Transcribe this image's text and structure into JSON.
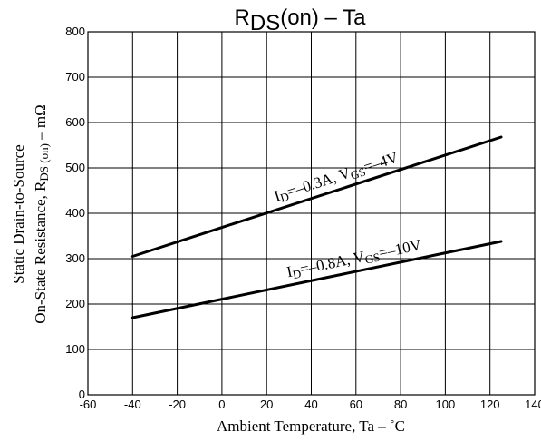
{
  "chart_data": {
    "type": "line",
    "title": {
      "main": "R",
      "sub": "DS",
      "rest": "(on)  –  Ta"
    },
    "xlabel": "Ambient Temperature, Ta  –  ˚C",
    "ylabel": {
      "line1": "Static Drain-to-Source",
      "line2_main": "On-State Resistance, R",
      "line2_sub": "DS (on)",
      "line2_rest": "  –  mΩ"
    },
    "xlim": [
      -60,
      140
    ],
    "ylim": [
      0,
      800
    ],
    "xticks": [
      -60,
      -40,
      -20,
      0,
      20,
      40,
      60,
      80,
      100,
      120,
      140
    ],
    "yticks": [
      0,
      100,
      200,
      300,
      400,
      500,
      600,
      700,
      800
    ],
    "grid": true,
    "series": [
      {
        "label": {
          "p1": "I",
          "s1": "D",
          "p2": "=–0.3A, V",
          "s2": "GS",
          "p3": "=–4V"
        },
        "x": [
          -40,
          125
        ],
        "y": [
          305,
          568
        ]
      },
      {
        "label": {
          "p1": "I",
          "s1": "D",
          "p2": "=–0.8A, V",
          "s2": "GS",
          "p3": "=–10V"
        },
        "x": [
          -40,
          125
        ],
        "y": [
          170,
          338
        ]
      }
    ]
  }
}
